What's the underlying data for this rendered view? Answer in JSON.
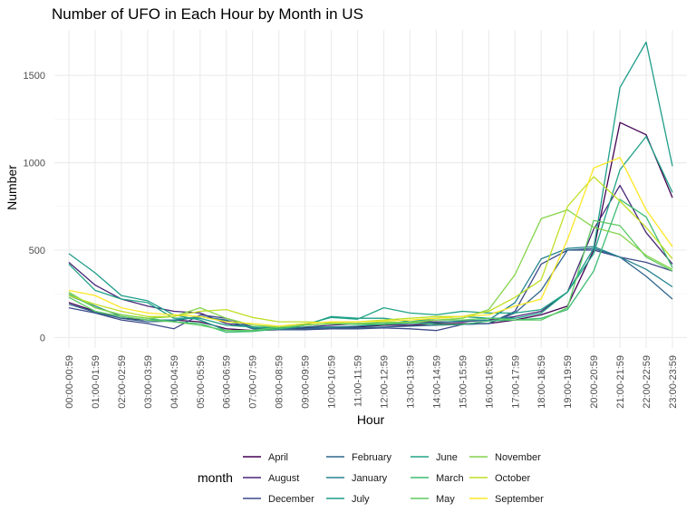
{
  "chart_data": {
    "type": "line",
    "title": "Number of UFO in Each Hour by Month in US",
    "xlabel": "Hour",
    "ylabel": "Number",
    "ylim": [
      -60,
      1760
    ],
    "yticks": [
      0,
      500,
      1000,
      1500
    ],
    "grid": true,
    "legend": {
      "title": "month",
      "position": "bottom"
    },
    "categories": [
      "00:00-00:59",
      "01:00-01:59",
      "02:00-02:59",
      "03:00-03:59",
      "04:00-04:59",
      "05:00-05:59",
      "06:00-06:59",
      "07:00-07:59",
      "08:00-08:59",
      "09:00-09:59",
      "10:00-10:59",
      "11:00-11:59",
      "12:00-12:59",
      "13:00-13:59",
      "14:00-14:59",
      "15:00-15:59",
      "16:00-16:59",
      "17:00-17:59",
      "18:00-18:59",
      "19:00-19:59",
      "20:00-20:59",
      "21:00-21:59",
      "22:00-22:59",
      "23:00-23:59"
    ],
    "series": [
      {
        "name": "April",
        "color": "#440154",
        "values": [
          200,
          150,
          110,
          100,
          100,
          90,
          50,
          40,
          45,
          55,
          60,
          60,
          70,
          70,
          80,
          80,
          80,
          100,
          130,
          180,
          500,
          1230,
          1160,
          800
        ]
      },
      {
        "name": "August",
        "color": "#482677",
        "values": [
          430,
          300,
          220,
          180,
          150,
          140,
          80,
          60,
          55,
          60,
          70,
          80,
          80,
          90,
          90,
          90,
          100,
          120,
          150,
          260,
          620,
          870,
          600,
          420
        ]
      },
      {
        "name": "December",
        "color": "#3f4a8a",
        "values": [
          170,
          140,
          100,
          80,
          50,
          130,
          110,
          60,
          45,
          45,
          50,
          50,
          55,
          50,
          40,
          75,
          80,
          150,
          420,
          500,
          500,
          460,
          430,
          380
        ]
      },
      {
        "name": "February",
        "color": "#31678e",
        "values": [
          190,
          145,
          110,
          90,
          95,
          120,
          100,
          50,
          45,
          50,
          55,
          55,
          60,
          65,
          70,
          75,
          80,
          140,
          270,
          500,
          510,
          460,
          350,
          220
        ]
      },
      {
        "name": "January",
        "color": "#26838f",
        "values": [
          240,
          180,
          120,
          100,
          100,
          120,
          95,
          55,
          50,
          60,
          60,
          65,
          75,
          80,
          85,
          95,
          100,
          200,
          450,
          510,
          520,
          460,
          390,
          290
        ]
      },
      {
        "name": "July",
        "color": "#1f9d8a",
        "values": [
          480,
          370,
          240,
          210,
          130,
          100,
          40,
          40,
          55,
          70,
          120,
          110,
          110,
          90,
          110,
          120,
          110,
          110,
          140,
          260,
          510,
          1430,
          1690,
          980
        ]
      },
      {
        "name": "June",
        "color": "#20a386",
        "values": [
          420,
          270,
          220,
          200,
          110,
          110,
          70,
          60,
          55,
          75,
          115,
          105,
          170,
          140,
          130,
          150,
          140,
          140,
          160,
          260,
          480,
          960,
          1150,
          830
        ]
      },
      {
        "name": "March",
        "color": "#3fbc73",
        "values": [
          250,
          170,
          130,
          110,
          90,
          80,
          30,
          35,
          50,
          70,
          80,
          75,
          75,
          85,
          75,
          75,
          95,
          100,
          110,
          160,
          380,
          790,
          690,
          400
        ]
      },
      {
        "name": "May",
        "color": "#5ec962",
        "values": [
          230,
          150,
          120,
          100,
          90,
          70,
          40,
          40,
          60,
          70,
          80,
          80,
          80,
          90,
          100,
          100,
          110,
          100,
          100,
          170,
          670,
          640,
          460,
          380
        ]
      },
      {
        "name": "November",
        "color": "#84d44b",
        "values": [
          260,
          170,
          130,
          110,
          120,
          170,
          110,
          70,
          60,
          70,
          80,
          80,
          90,
          85,
          100,
          110,
          160,
          360,
          680,
          730,
          630,
          590,
          470,
          390
        ]
      },
      {
        "name": "October",
        "color": "#c0df25",
        "values": [
          240,
          190,
          150,
          120,
          120,
          150,
          160,
          115,
          90,
          90,
          85,
          90,
          100,
          110,
          120,
          120,
          150,
          230,
          330,
          750,
          920,
          780,
          630,
          450
        ]
      },
      {
        "name": "September",
        "color": "#fde725",
        "values": [
          270,
          240,
          170,
          140,
          130,
          120,
          90,
          80,
          65,
          80,
          90,
          90,
          95,
          100,
          110,
          120,
          130,
          180,
          220,
          560,
          970,
          1030,
          730,
          520
        ]
      }
    ]
  }
}
